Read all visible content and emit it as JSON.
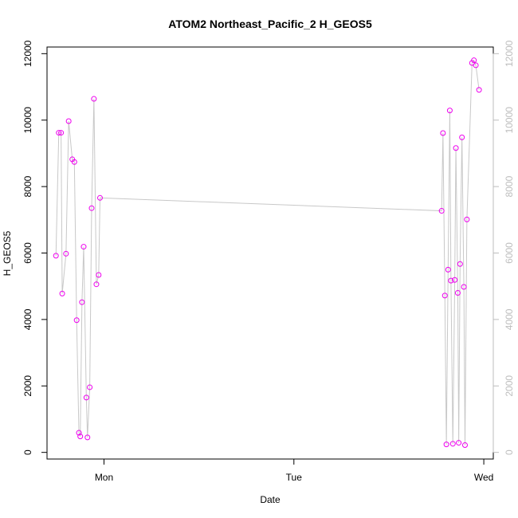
{
  "chart_data": {
    "type": "line",
    "title": "ATOM2 Northeast_Pacific_2 H_GEOS5",
    "xlabel": "Date",
    "ylabel": "H_GEOS5",
    "x_ticks": [
      {
        "label": "Mon",
        "value": 0
      },
      {
        "label": "Tue",
        "value": 1
      },
      {
        "label": "Wed",
        "value": 2
      }
    ],
    "xlim": [
      -0.3,
      2.05
    ],
    "ylim": [
      -200,
      12200
    ],
    "y_ticks": [
      0,
      2000,
      4000,
      6000,
      8000,
      10000,
      12000
    ],
    "right_axis": true,
    "grid": false,
    "colors": {
      "points": "#ee00ee",
      "line": "#c8c8c8",
      "right_axis": "#bdbdbd"
    },
    "series": [
      {
        "x_unit": "days since Monday 00:00",
        "x": [
          -0.253,
          -0.238,
          -0.226,
          -0.22,
          -0.2,
          -0.186,
          -0.167,
          -0.156,
          -0.144,
          -0.132,
          -0.125,
          -0.116,
          -0.107,
          -0.093,
          -0.087,
          -0.075,
          -0.065,
          -0.053,
          -0.04,
          -0.028,
          -0.021,
          1.778,
          1.785,
          1.795,
          1.803,
          1.812,
          1.821,
          1.827,
          1.837,
          1.847,
          1.853,
          1.863,
          1.868,
          1.875,
          1.885,
          1.895,
          1.901,
          1.911,
          1.938,
          1.948,
          1.958,
          1.975
        ],
        "y": [
          5920,
          9620,
          9620,
          4780,
          5980,
          9970,
          8820,
          8740,
          3980,
          590,
          480,
          4520,
          6190,
          1650,
          450,
          1960,
          7350,
          10640,
          5060,
          5340,
          7660,
          7270,
          9610,
          4720,
          240,
          5500,
          10290,
          5170,
          260,
          5190,
          9160,
          4800,
          290,
          5670,
          9480,
          4980,
          220,
          7010,
          11720,
          11800,
          11650,
          10910
        ]
      }
    ]
  }
}
